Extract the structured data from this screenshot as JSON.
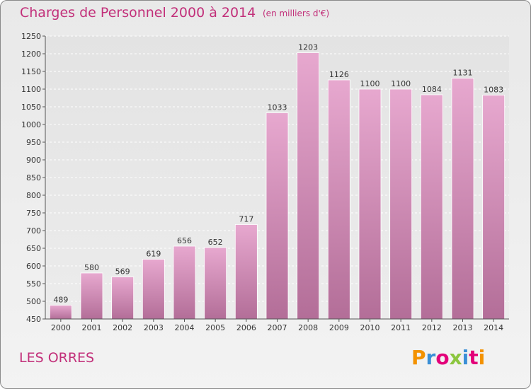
{
  "header": {
    "title": "Charges de Personnel 2000 à 2014",
    "unit_note": "(en milliers d'€)"
  },
  "footer": {
    "commune": "LES ORRES",
    "logo_text": "Proxiti",
    "logo_letter_colors": [
      "#f39200",
      "#3a8fd6",
      "#e3007a",
      "#8cc63f",
      "#3a8fd6",
      "#e3007a",
      "#f39200"
    ]
  },
  "chart_data": {
    "type": "bar",
    "categories": [
      "2000",
      "2001",
      "2002",
      "2003",
      "2004",
      "2005",
      "2006",
      "2007",
      "2008",
      "2009",
      "2010",
      "2011",
      "2012",
      "2013",
      "2014"
    ],
    "values": [
      489,
      580,
      569,
      619,
      656,
      652,
      717,
      1033,
      1203,
      1126,
      1100,
      1100,
      1084,
      1131,
      1083
    ],
    "title": "Charges de Personnel 2000 à 2014",
    "xlabel": "",
    "ylabel": "",
    "ylim": [
      450,
      1250
    ],
    "yticks": [
      450,
      500,
      550,
      600,
      650,
      700,
      750,
      800,
      850,
      900,
      950,
      1000,
      1050,
      1100,
      1150,
      1200,
      1250
    ],
    "grid": true,
    "bar_color_top": "#e7a8cf",
    "bar_color_bottom": "#b36e98"
  }
}
